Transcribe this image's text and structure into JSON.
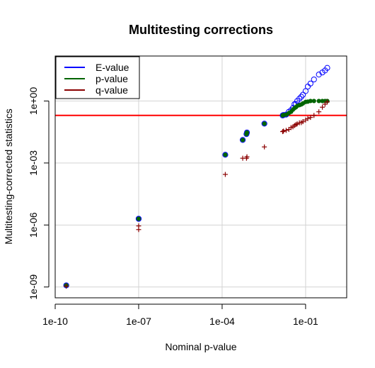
{
  "chart_data": {
    "type": "scatter",
    "title": "Multitesting corrections",
    "xlabel": "Nominal p-value",
    "ylabel": "Multitesting-corrected statistics",
    "x_log": true,
    "y_log": true,
    "xlim": [
      1e-10,
      3
    ],
    "ylim": [
      3e-10,
      150
    ],
    "x_ticks": [
      {
        "value": 1e-10,
        "label": "1e-10"
      },
      {
        "value": 1e-07,
        "label": "1e-07"
      },
      {
        "value": 0.0001,
        "label": "1e-04"
      },
      {
        "value": 0.1,
        "label": "1e-01"
      }
    ],
    "y_ticks": [
      {
        "value": 1e-09,
        "label": "1e-09"
      },
      {
        "value": 1e-06,
        "label": "1e-06"
      },
      {
        "value": 0.001,
        "label": "1e-03"
      },
      {
        "value": 1,
        "label": "1e+00"
      }
    ],
    "grid": true,
    "threshold_line": {
      "y": 0.2,
      "color": "#ff0000"
    },
    "legend_position": "top-left",
    "series": [
      {
        "name": "E-value",
        "color": "#0000ff",
        "marker": "open-circle",
        "points": [
          [
            2.5e-10,
            1.2e-09
          ],
          [
            1e-07,
            2e-06
          ],
          [
            1e-07,
            2e-06
          ],
          [
            0.00013,
            0.0025
          ],
          [
            0.00055,
            0.013
          ],
          [
            0.00075,
            0.025
          ],
          [
            0.00078,
            0.03
          ],
          [
            0.0033,
            0.08
          ],
          [
            0.015,
            0.2
          ],
          [
            0.016,
            0.21
          ],
          [
            0.02,
            0.22
          ],
          [
            0.025,
            0.3
          ],
          [
            0.03,
            0.36
          ],
          [
            0.035,
            0.46
          ],
          [
            0.04,
            0.7
          ],
          [
            0.045,
            0.72
          ],
          [
            0.05,
            1.0
          ],
          [
            0.06,
            1.3
          ],
          [
            0.07,
            1.6
          ],
          [
            0.08,
            2.0
          ],
          [
            0.1,
            3.0
          ],
          [
            0.12,
            5.0
          ],
          [
            0.15,
            7.0
          ],
          [
            0.2,
            11.0
          ],
          [
            0.3,
            19.0
          ],
          [
            0.4,
            24.0
          ],
          [
            0.5,
            30.0
          ],
          [
            0.6,
            40.0
          ]
        ]
      },
      {
        "name": "p-value",
        "color": "#006400",
        "marker": "filled-circle",
        "points": [
          [
            2.5e-10,
            1.2e-09
          ],
          [
            1e-07,
            2e-06
          ],
          [
            1e-07,
            2e-06
          ],
          [
            0.00013,
            0.0025
          ],
          [
            0.00055,
            0.013
          ],
          [
            0.00075,
            0.025
          ],
          [
            0.00078,
            0.03
          ],
          [
            0.0033,
            0.08
          ],
          [
            0.015,
            0.2
          ],
          [
            0.016,
            0.21
          ],
          [
            0.02,
            0.22
          ],
          [
            0.025,
            0.26
          ],
          [
            0.03,
            0.3
          ],
          [
            0.035,
            0.38
          ],
          [
            0.04,
            0.45
          ],
          [
            0.045,
            0.5
          ],
          [
            0.05,
            0.58
          ],
          [
            0.06,
            0.63
          ],
          [
            0.07,
            0.68
          ],
          [
            0.08,
            0.76
          ],
          [
            0.1,
            0.9
          ],
          [
            0.12,
            0.93
          ],
          [
            0.15,
            1.0
          ],
          [
            0.2,
            1.0
          ],
          [
            0.3,
            1.0
          ],
          [
            0.4,
            1.0
          ],
          [
            0.5,
            1.0
          ],
          [
            0.6,
            1.0
          ]
        ]
      },
      {
        "name": "q-value",
        "color": "#8b0000",
        "marker": "plus",
        "points": [
          [
            2.5e-10,
            1.1e-09
          ],
          [
            1e-07,
            6e-07
          ],
          [
            1e-07,
            9e-07
          ],
          [
            0.00013,
            0.00028
          ],
          [
            0.00055,
            0.0017
          ],
          [
            0.00075,
            0.0017
          ],
          [
            0.00078,
            0.002
          ],
          [
            0.0033,
            0.006
          ],
          [
            0.015,
            0.033
          ],
          [
            0.016,
            0.035
          ],
          [
            0.02,
            0.038
          ],
          [
            0.025,
            0.042
          ],
          [
            0.03,
            0.052
          ],
          [
            0.035,
            0.056
          ],
          [
            0.04,
            0.065
          ],
          [
            0.045,
            0.073
          ],
          [
            0.05,
            0.078
          ],
          [
            0.06,
            0.088
          ],
          [
            0.07,
            0.09
          ],
          [
            0.08,
            0.1
          ],
          [
            0.1,
            0.12
          ],
          [
            0.12,
            0.14
          ],
          [
            0.15,
            0.16
          ],
          [
            0.2,
            0.2
          ],
          [
            0.3,
            0.3
          ],
          [
            0.4,
            0.5
          ],
          [
            0.5,
            0.7
          ],
          [
            0.6,
            0.9
          ]
        ]
      }
    ]
  }
}
